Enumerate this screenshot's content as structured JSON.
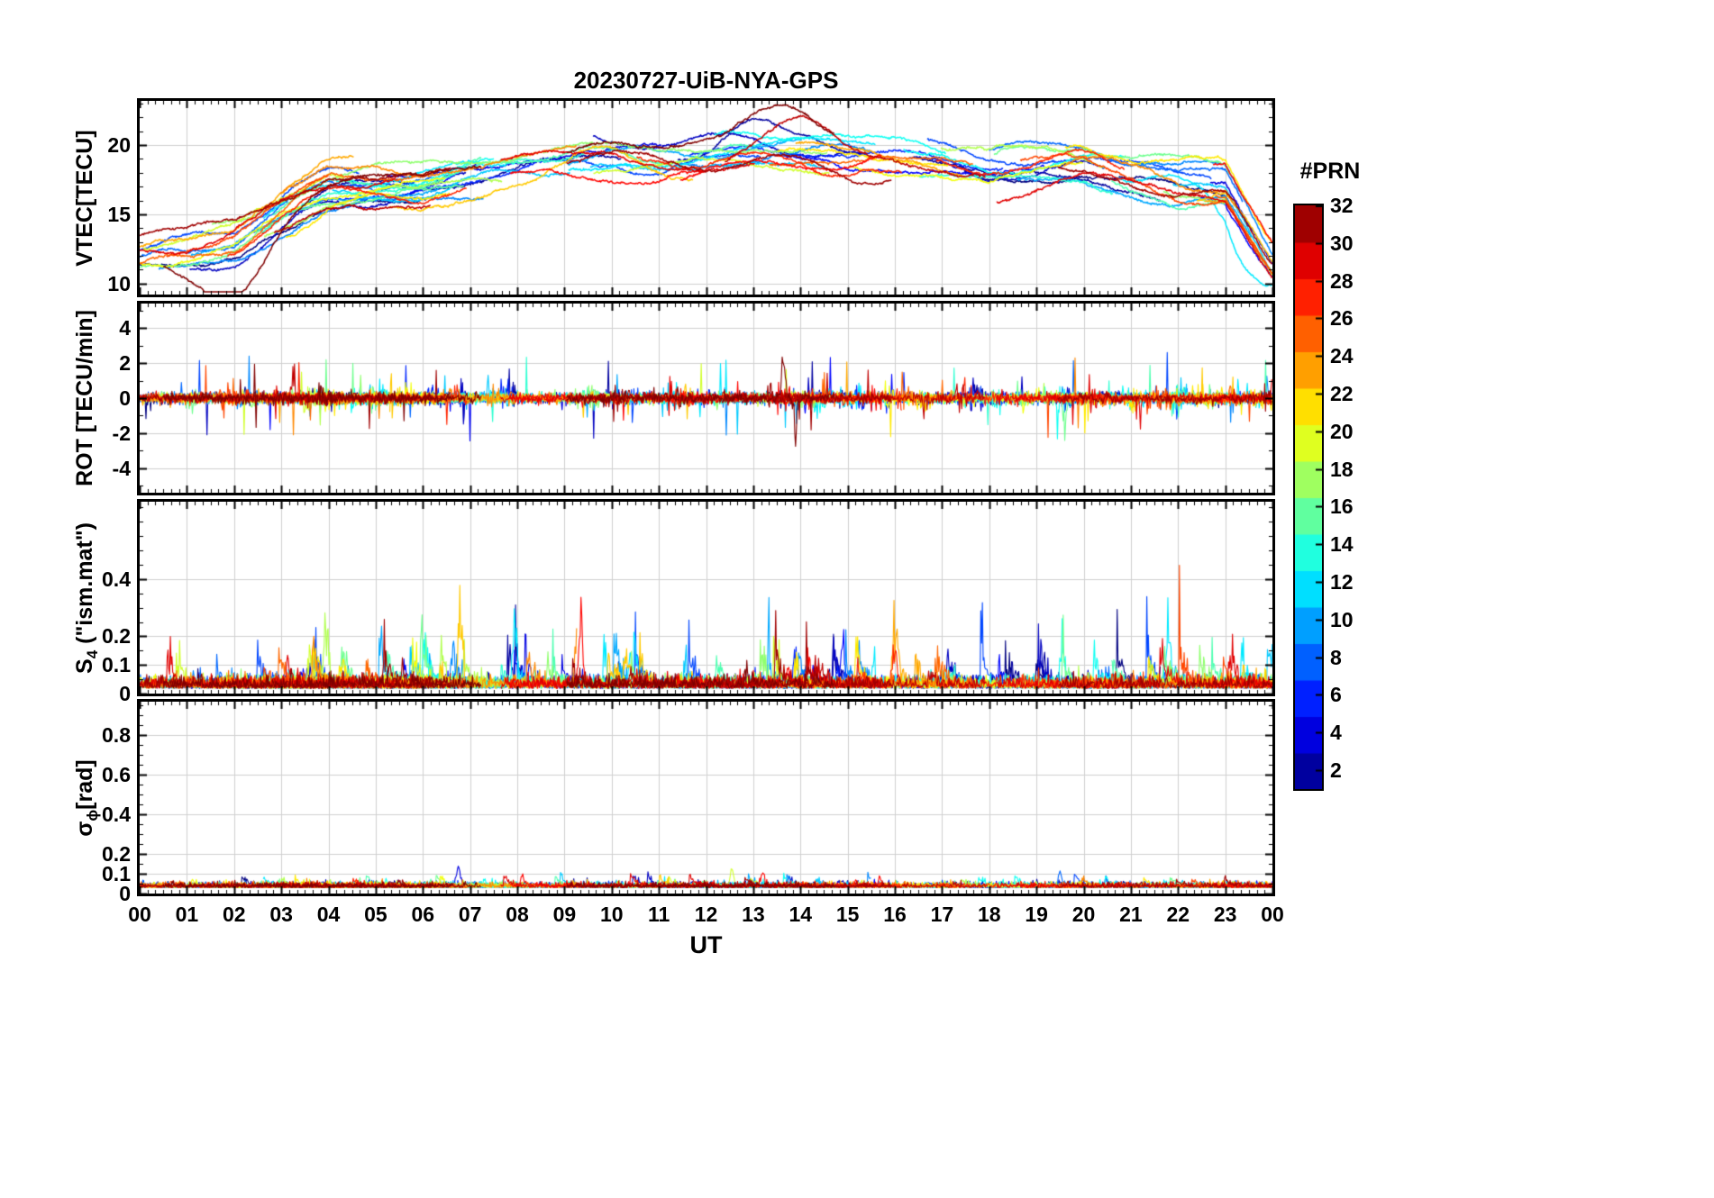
{
  "title": "20230727-UiB-NYA-GPS",
  "background": "#ffffff",
  "grid_color": "#d0d0d0",
  "axis_color": "#000000",
  "colorbar": {
    "label": "#PRN",
    "tick_values": [
      2,
      4,
      6,
      8,
      10,
      12,
      14,
      16,
      18,
      20,
      22,
      24,
      26,
      28,
      30,
      32
    ],
    "tick_labels": [
      "2",
      "4",
      "6",
      "8",
      "10",
      "12",
      "14",
      "16",
      "18",
      "20",
      "22",
      "24",
      "26",
      "28",
      "30",
      "32"
    ],
    "min": 1,
    "max": 32,
    "colormap": "jet",
    "position": "right"
  },
  "chart_data": {
    "type": "line",
    "title": "20230727-UiB-NYA-GPS",
    "grid": true,
    "legend": "colorbar #PRN 1-32, jet colormap",
    "x": {
      "label": "UT",
      "min": 0,
      "max": 24,
      "tick_step_hours": 1,
      "minor_step_minutes": 10,
      "tick_labels": [
        "00",
        "01",
        "02",
        "03",
        "04",
        "05",
        "06",
        "07",
        "08",
        "09",
        "10",
        "11",
        "12",
        "13",
        "14",
        "15",
        "16",
        "17",
        "18",
        "19",
        "20",
        "21",
        "22",
        "23",
        "00"
      ]
    },
    "panels": [
      {
        "id": "vtec",
        "ylabel": {
          "main": "VTEC[TECU]",
          "sub": "",
          "rest": ""
        },
        "ylim": [
          9.2,
          23.2
        ],
        "ytick_values": [
          10,
          15,
          20
        ],
        "ytick_labels": [
          "10",
          "15",
          "20"
        ],
        "y_minor_step": 1,
        "line_width": 1.5,
        "model": {
          "kind": "diurnal",
          "hourly_mean": [
            11.5,
            12.0,
            12.8,
            15.0,
            16.8,
            17.0,
            17.0,
            17.8,
            18.5,
            18.8,
            19.0,
            18.8,
            19.0,
            19.5,
            19.5,
            19.0,
            18.8,
            18.5,
            18.0,
            18.5,
            18.8,
            18.0,
            17.2,
            17.2
          ],
          "spread": 1.3,
          "wander": 0.5
        }
      },
      {
        "id": "rot",
        "ylabel": {
          "main": "ROT [TECU/min]",
          "sub": "",
          "rest": ""
        },
        "ylim": [
          -5.4,
          5.4
        ],
        "ytick_values": [
          -4,
          -2,
          0,
          2,
          4
        ],
        "ytick_labels": [
          "-4",
          "-2",
          "0",
          "2",
          "4"
        ],
        "y_minor_step": 1,
        "line_width": 1.1,
        "model": {
          "kind": "noise",
          "sigma": 0.15,
          "spike_prob": 0.0035,
          "spike_amp": 1.5
        }
      },
      {
        "id": "s4",
        "ylabel": {
          "main": "S",
          "sub": "4",
          "rest": " (\"ism.mat\")"
        },
        "ylim": [
          0,
          0.67
        ],
        "ytick_values": [
          0,
          0.1,
          0.2,
          0.4
        ],
        "ytick_labels": [
          "0",
          "0.1",
          "0.2",
          "0.4"
        ],
        "y_minor_step": 0.05,
        "line_width": 1.1,
        "model": {
          "kind": "positive",
          "base": 0.018,
          "sigma": 0.02,
          "spike_prob": 0.005,
          "spike_amp": 0.13
        }
      },
      {
        "id": "sigma_phi",
        "ylabel": {
          "main": "σ",
          "sub": "ϕ",
          "rest": "[rad]"
        },
        "ylim": [
          0,
          0.97
        ],
        "ytick_values": [
          0,
          0.1,
          0.2,
          0.4,
          0.6,
          0.8
        ],
        "ytick_labels": [
          "0",
          "0.1",
          "0.2",
          "0.4",
          "0.6",
          "0.8"
        ],
        "y_minor_step": 0.05,
        "line_width": 1.1,
        "model": {
          "kind": "positive",
          "base": 0.03,
          "sigma": 0.012,
          "spike_prob": 0.002,
          "spike_amp": 0.05
        }
      }
    ],
    "series": {
      "colormap": "jet",
      "prn_min": 1,
      "prn_max": 32,
      "seed": 20230727,
      "sample_minutes": 1,
      "arcs_per_satellite": [
        2,
        3
      ],
      "arc_duration_hours": [
        3.2,
        7.0
      ]
    },
    "features": [
      {
        "panel": "vtec",
        "prn": 32,
        "t": 2.0,
        "amp": -3.8,
        "width": 1.0
      },
      {
        "panel": "vtec",
        "prn": 32,
        "t": 13.6,
        "amp": 2.5,
        "width": 1.2
      },
      {
        "panel": "vtec",
        "prn": 30,
        "t": 13.9,
        "amp": 2.2,
        "width": 1.0
      },
      {
        "panel": "vtec",
        "prn": 2,
        "t": 12.9,
        "amp": 1.8,
        "width": 0.8
      },
      {
        "panel": "vtec",
        "prn": 22,
        "t": 9.8,
        "amp": 2.0,
        "width": 1.0
      },
      {
        "panel": "vtec",
        "prn": 12,
        "t": 23.3,
        "amp": -3.0,
        "width": 0.7
      },
      {
        "panel": "rot",
        "prn": 4,
        "t": 3.1,
        "amp": 2.4,
        "width": 0.05
      },
      {
        "panel": "rot",
        "prn": 30,
        "t": 3.25,
        "amp": 2.3,
        "width": 0.05
      },
      {
        "panel": "rot",
        "prn": 32,
        "t": 13.65,
        "amp": 2.9,
        "width": 0.05
      },
      {
        "panel": "rot",
        "prn": 32,
        "t": 13.9,
        "amp": -2.0,
        "width": 0.05
      },
      {
        "panel": "rot",
        "prn": 16,
        "t": 19.6,
        "amp": -1.9,
        "width": 0.05
      },
      {
        "panel": "s4",
        "prn": 22,
        "t": 6.8,
        "amp": 0.3,
        "width": 0.06
      },
      {
        "panel": "s4",
        "prn": 12,
        "t": 7.95,
        "amp": 0.24,
        "width": 0.06
      },
      {
        "panel": "s4",
        "prn": 28,
        "t": 9.35,
        "amp": 0.2,
        "width": 0.06
      },
      {
        "panel": "s4",
        "prn": 18,
        "t": 3.95,
        "amp": 0.17,
        "width": 0.08
      },
      {
        "panel": "s4",
        "prn": 12,
        "t": 21.8,
        "amp": 0.24,
        "width": 0.06
      },
      {
        "panel": "s4",
        "prn": 13,
        "t": 19.55,
        "amp": 0.15,
        "width": 0.06
      },
      {
        "panel": "s4",
        "prn": 27,
        "t": 16.0,
        "amp": 0.15,
        "width": 0.06
      },
      {
        "panel": "s4",
        "prn": 5,
        "t": 14.9,
        "amp": 0.13,
        "width": 0.06
      },
      {
        "panel": "sigma_phi",
        "prn": 4,
        "t": 6.75,
        "amp": 0.1,
        "width": 0.05
      },
      {
        "panel": "sigma_phi",
        "prn": 19,
        "t": 12.55,
        "amp": 0.09,
        "width": 0.05
      },
      {
        "panel": "sigma_phi",
        "prn": 28,
        "t": 13.2,
        "amp": 0.07,
        "width": 0.05
      },
      {
        "panel": "sigma_phi",
        "prn": 8,
        "t": 19.5,
        "amp": 0.07,
        "width": 0.05
      }
    ]
  }
}
